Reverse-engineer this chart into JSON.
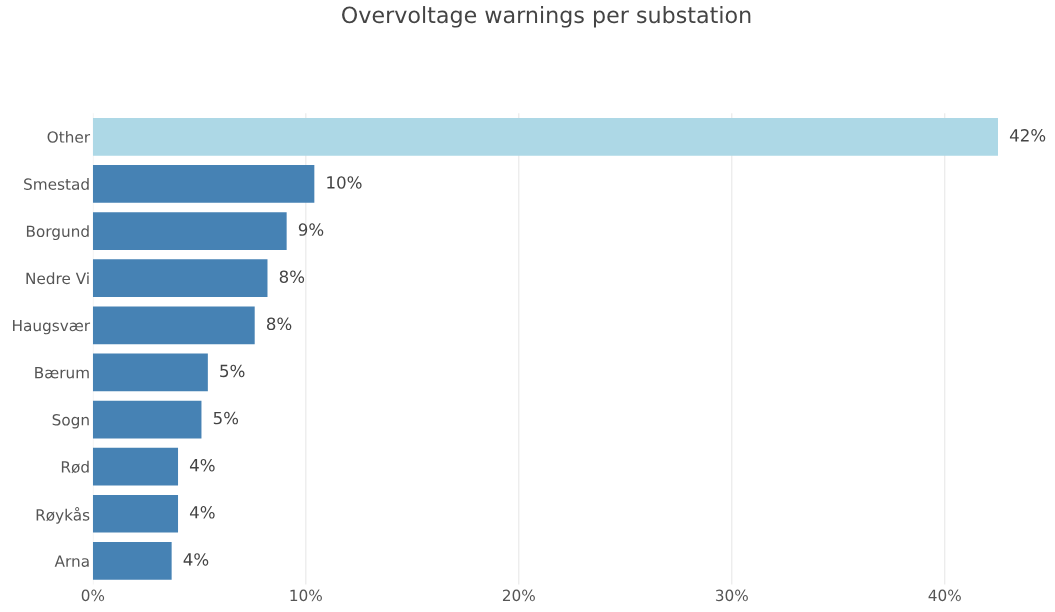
{
  "chart_data": {
    "type": "bar",
    "orientation": "horizontal",
    "title": "Overvoltage warnings per substation",
    "categories": [
      "Other",
      "Smestad",
      "Borgund",
      "Nedre Vi",
      "Haugsvær",
      "Bærum",
      "Sogn",
      "Rød",
      "Røykås",
      "Arna"
    ],
    "values": [
      42.5,
      10.4,
      9.1,
      8.2,
      7.6,
      5.4,
      5.1,
      4.0,
      4.0,
      3.7
    ],
    "value_labels": [
      "42%",
      "10%",
      "9%",
      "8%",
      "8%",
      "5%",
      "5%",
      "4%",
      "4%",
      "4%"
    ],
    "colors": [
      "#add8e6",
      "#4682b4",
      "#4682b4",
      "#4682b4",
      "#4682b4",
      "#4682b4",
      "#4682b4",
      "#4682b4",
      "#4682b4",
      "#4682b4"
    ],
    "xlim": [
      0,
      42.6
    ],
    "xticks": [
      {
        "value": 0,
        "label": "0%"
      },
      {
        "value": 10,
        "label": "10%"
      },
      {
        "value": 20,
        "label": "20%"
      },
      {
        "value": 30,
        "label": "30%"
      },
      {
        "value": 40,
        "label": "40%"
      }
    ],
    "grid": "x"
  }
}
